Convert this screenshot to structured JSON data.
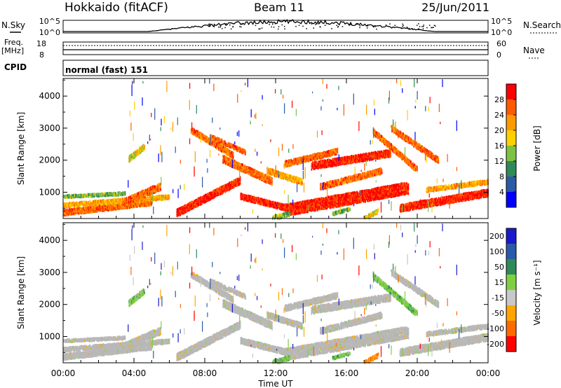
{
  "header": {
    "station": "Hokkaido (fitACF)",
    "beam": "Beam 11",
    "date": "25/Jun/2011"
  },
  "status_panels": {
    "nsky_label": "N.Sky",
    "nsearch_label": "N.Search",
    "noise_ticks": [
      "10^5",
      "10^0"
    ],
    "freq_label": "Freq.",
    "freq_unit": "[MHz]",
    "freq_ticks": [
      "18",
      "8"
    ],
    "nave_label": "Nave",
    "nave_ticks": [
      "60",
      "0"
    ],
    "cpid_label": "CPID",
    "cpid_value": "normal (fast) 151"
  },
  "colors": {
    "power": [
      "#0000ff",
      "#2a5aa8",
      "#2e8b57",
      "#7fc241",
      "#ffd000",
      "#ff9900",
      "#ff5a00",
      "#ff0000"
    ],
    "velocity": [
      "#1a1acc",
      "#2a5aa8",
      "#2e8b57",
      "#7fd041",
      "#c8c8c8",
      "#ffa500",
      "#ff6a00",
      "#ff0000"
    ],
    "ground_scatter": "#b8b8b8"
  },
  "chart_data": [
    {
      "type": "heatmap",
      "name": "power",
      "ylabel": "Slant Range [km]",
      "ylim": [
        180,
        4550
      ],
      "yticks": [
        1000,
        2000,
        3000,
        4000
      ],
      "xlim_hours": [
        0,
        24
      ],
      "colorbar": {
        "label": "Power [dB]",
        "min": 0,
        "max": 32,
        "tick_values": [
          4,
          8,
          12,
          16,
          20,
          24,
          28
        ]
      }
    },
    {
      "type": "heatmap",
      "name": "velocity",
      "ylabel": "Slant Range [km]",
      "ylim": [
        180,
        4550
      ],
      "yticks": [
        1000,
        2000,
        3000,
        4000
      ],
      "xlim_hours": [
        0,
        24
      ],
      "colorbar": {
        "label": "Velocity [m s⁻¹]",
        "tick_labels": [
          "200",
          "100",
          "50",
          "15",
          "-15",
          "-50",
          "-100",
          "-200"
        ]
      }
    }
  ],
  "xaxis": {
    "label": "Time UT",
    "tick_labels": [
      "00:00",
      "04:00",
      "08:00",
      "12:00",
      "16:00",
      "20:00",
      "00:00"
    ]
  }
}
